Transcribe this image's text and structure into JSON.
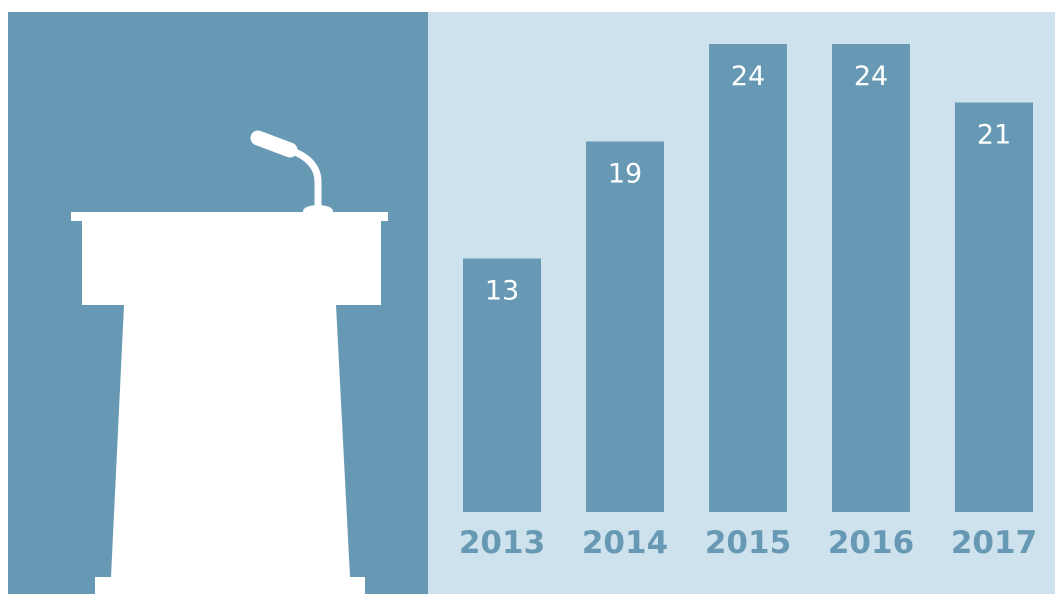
{
  "chart_data": {
    "type": "bar",
    "categories": [
      "2013",
      "2014",
      "2015",
      "2016",
      "2017"
    ],
    "values": [
      13,
      19,
      24,
      24,
      21
    ],
    "title": "",
    "xlabel": "",
    "ylabel": "",
    "ylim": [
      0,
      26
    ],
    "grid": false,
    "data_labels": true,
    "colors": {
      "bar": "#6899b4",
      "data_label": "#ffffff",
      "category_label": "#6899b4",
      "plot_background": "#cde2ec",
      "left_panel": "#6899b4"
    }
  },
  "illustration": {
    "icon": "podium-icon"
  }
}
